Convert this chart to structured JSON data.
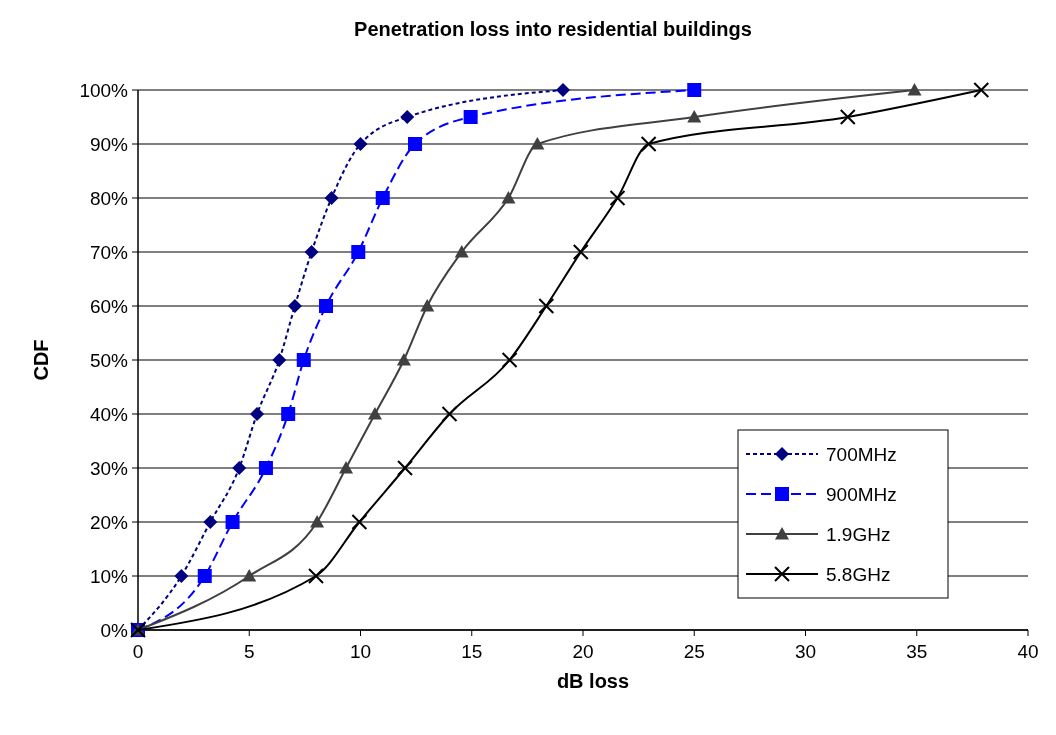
{
  "chart_data": {
    "type": "line",
    "title": "Penetration loss into residential buildings",
    "xlabel": "dB loss",
    "ylabel": "CDF",
    "xlim": [
      0,
      40
    ],
    "xticks": [
      0,
      5,
      10,
      15,
      20,
      25,
      30,
      35,
      40
    ],
    "ylim": [
      0,
      100
    ],
    "yticks": [
      {
        "value": 0,
        "label": "0%"
      },
      {
        "value": 10,
        "label": "10%"
      },
      {
        "value": 20,
        "label": "20%"
      },
      {
        "value": 30,
        "label": "30%"
      },
      {
        "value": 40,
        "label": "40%"
      },
      {
        "value": 50,
        "label": "50%"
      },
      {
        "value": 60,
        "label": "60%"
      },
      {
        "value": 70,
        "label": "70%"
      },
      {
        "value": 80,
        "label": "80%"
      },
      {
        "value": 90,
        "label": "90%"
      },
      {
        "value": 100,
        "label": "100%"
      }
    ],
    "grid": "y",
    "legend": "bottom right",
    "series": [
      {
        "name": "700MHz",
        "color": "#000080",
        "marker": "diamond",
        "line_style": "dotted",
        "x": [
          0,
          1.95,
          3.25,
          4.55,
          5.35,
          6.35,
          7.05,
          7.8,
          8.7,
          10,
          12.1,
          19.1
        ],
        "values": [
          0,
          10,
          20,
          30,
          40,
          50,
          60,
          70,
          80,
          90,
          95,
          100
        ]
      },
      {
        "name": "900MHz",
        "color": "#0000ff",
        "marker": "square",
        "line_style": "dashed",
        "x": [
          0,
          3,
          4.25,
          5.75,
          6.75,
          7.45,
          8.45,
          9.9,
          11,
          12.45,
          14.95,
          25
        ],
        "values": [
          0,
          10,
          20,
          30,
          40,
          50,
          60,
          70,
          80,
          90,
          95,
          100
        ]
      },
      {
        "name": "1.9GHz",
        "color": "#404040",
        "marker": "triangle",
        "line_style": "solid",
        "x": [
          0,
          5,
          8.05,
          9.35,
          10.65,
          11.95,
          13,
          14.55,
          16.65,
          17.95,
          25,
          34.9
        ],
        "values": [
          0,
          10,
          20,
          30,
          40,
          50,
          60,
          70,
          80,
          90,
          95,
          100
        ]
      },
      {
        "name": "5.8GHz",
        "color": "#000000",
        "marker": "cross",
        "line_style": "solid",
        "x": [
          0,
          8,
          9.95,
          12,
          14,
          16.7,
          18.35,
          19.9,
          21.55,
          22.95,
          31.9,
          37.9
        ],
        "values": [
          0,
          10,
          20,
          30,
          40,
          50,
          60,
          70,
          80,
          90,
          95,
          100
        ]
      }
    ]
  }
}
